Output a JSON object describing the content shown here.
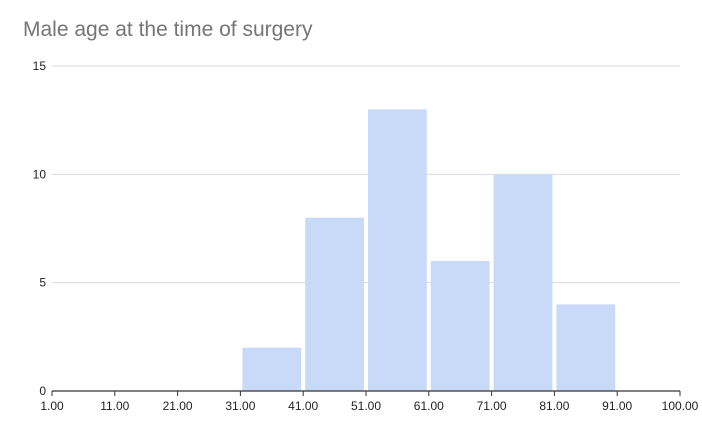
{
  "chart_data": {
    "type": "bar",
    "title": "Male age at the time of surgery",
    "xlabel": "",
    "ylabel": "",
    "bin_edges": [
      "1.00",
      "11.00",
      "21.00",
      "31.00",
      "41.00",
      "51.00",
      "61.00",
      "71.00",
      "81.00",
      "91.00",
      "100.00"
    ],
    "values": [
      0,
      0,
      0,
      2,
      8,
      13,
      6,
      10,
      4,
      0
    ],
    "y_ticks": [
      "0",
      "5",
      "10",
      "15"
    ],
    "ylim": [
      0,
      15
    ],
    "grid": true,
    "legend": "none",
    "colors": {
      "bar": "#c9daf8",
      "grid": "#d9d9d9",
      "axis": "#333333",
      "title": "#757575"
    }
  }
}
